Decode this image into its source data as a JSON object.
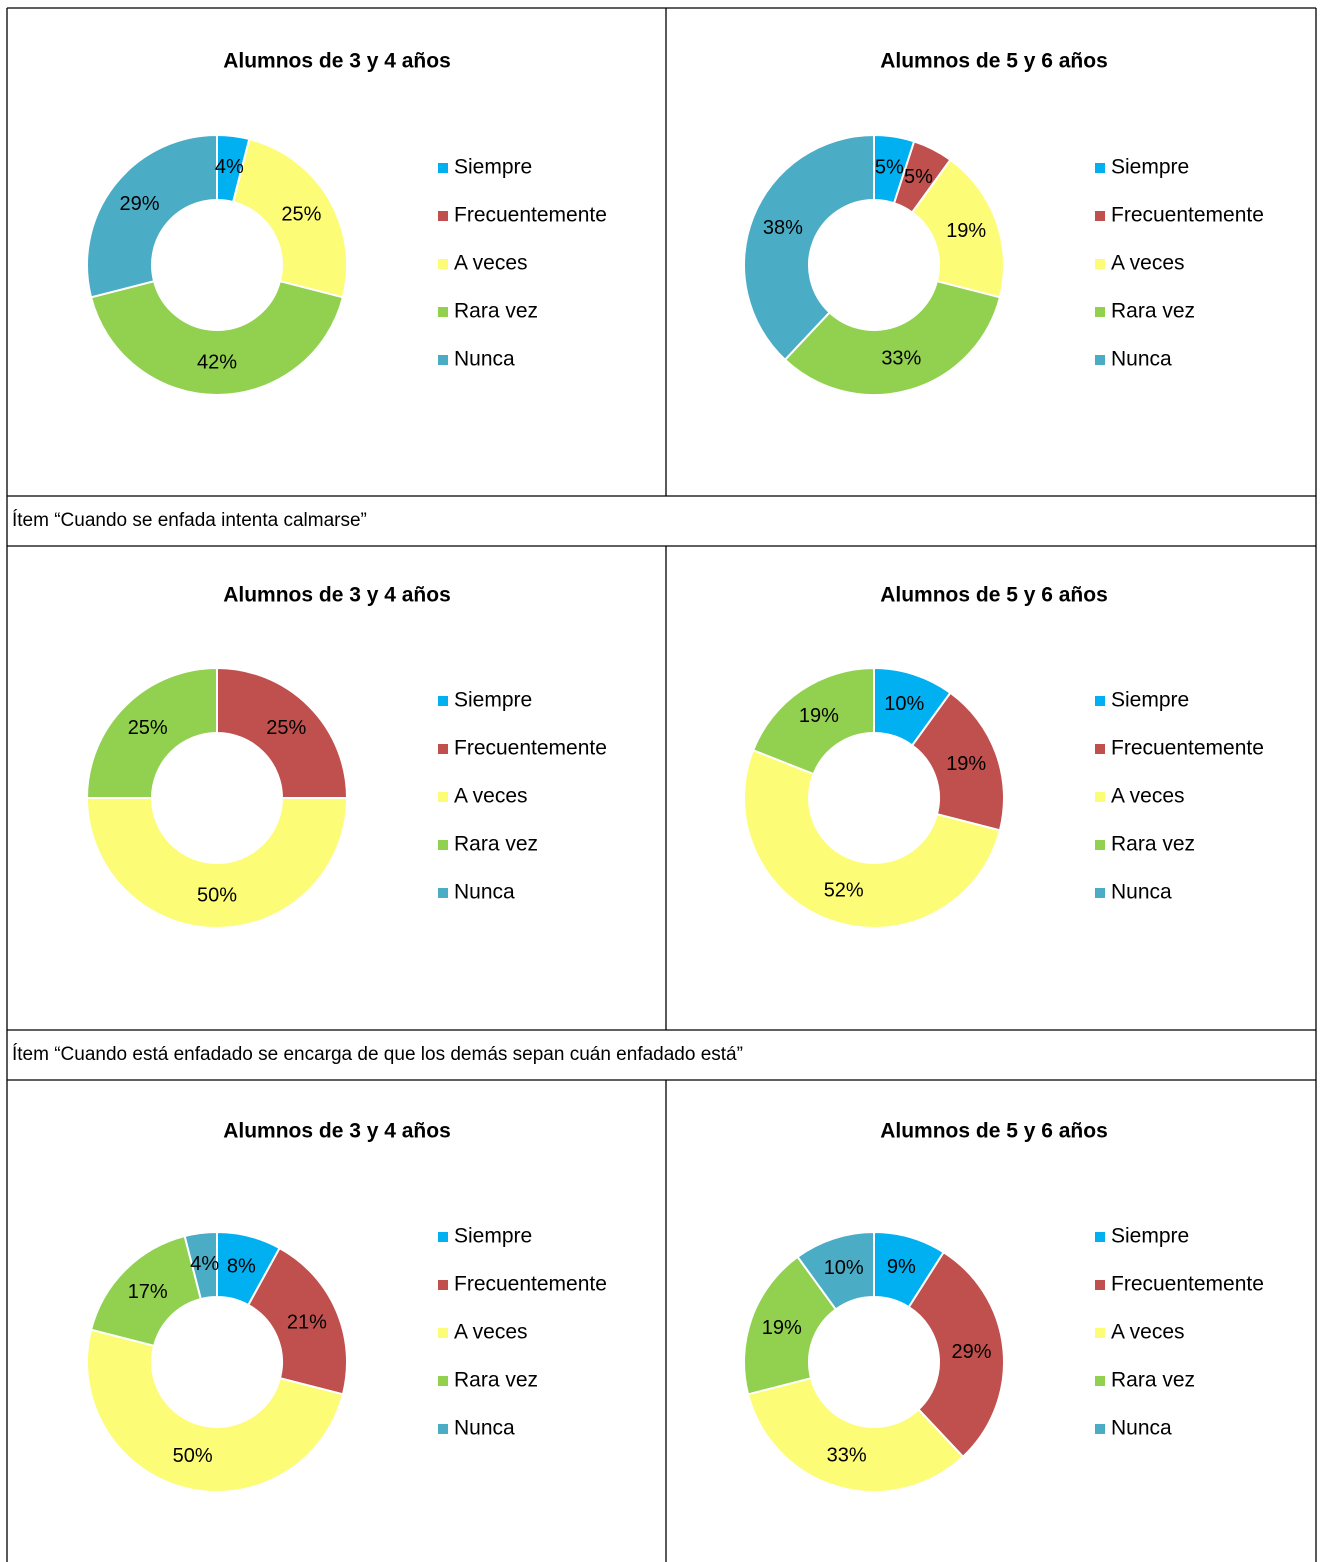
{
  "chart_data": [
    {
      "type": "donut",
      "title": "Alumnos de 3 y 4 años",
      "categories": [
        "Siempre",
        "Frecuentemente",
        "A veces",
        "Rara vez",
        "Nunca"
      ],
      "values": [
        4,
        0,
        25,
        42,
        29
      ],
      "value_labels": [
        "4%",
        null,
        "25%",
        "42%",
        "29%"
      ],
      "colors": [
        "#00b0f0",
        "#c0504d",
        "#fcfc77",
        "#92d050",
        "#4bacc6"
      ]
    },
    {
      "type": "donut",
      "title": "Alumnos de 5 y 6 años",
      "categories": [
        "Siempre",
        "Frecuentemente",
        "A veces",
        "Rara vez",
        "Nunca"
      ],
      "values": [
        5,
        5,
        19,
        33,
        38
      ],
      "value_labels": [
        "5%",
        "5%",
        "19%",
        "33%",
        "38%"
      ],
      "colors": [
        "#00b0f0",
        "#c0504d",
        "#fcfc77",
        "#92d050",
        "#4bacc6"
      ]
    },
    {
      "type": "donut",
      "title": "Alumnos de 3 y 4 años",
      "categories": [
        "Siempre",
        "Frecuentemente",
        "A veces",
        "Rara vez",
        "Nunca"
      ],
      "values": [
        0,
        25,
        50,
        25,
        0
      ],
      "value_labels": [
        null,
        "25%",
        "50%",
        "25%",
        null
      ],
      "colors": [
        "#00b0f0",
        "#c0504d",
        "#fcfc77",
        "#92d050",
        "#4bacc6"
      ]
    },
    {
      "type": "donut",
      "title": "Alumnos de 5 y 6 años",
      "categories": [
        "Siempre",
        "Frecuentemente",
        "A veces",
        "Rara vez",
        "Nunca"
      ],
      "values": [
        10,
        19,
        52,
        19,
        0
      ],
      "value_labels": [
        "10%",
        "19%",
        "52%",
        "19%",
        null
      ],
      "colors": [
        "#00b0f0",
        "#c0504d",
        "#fcfc77",
        "#92d050",
        "#4bacc6"
      ]
    },
    {
      "type": "donut",
      "title": "Alumnos de 3 y 4 años",
      "categories": [
        "Siempre",
        "Frecuentemente",
        "A veces",
        "Rara vez",
        "Nunca"
      ],
      "values": [
        8,
        21,
        50,
        17,
        4
      ],
      "value_labels": [
        "8%",
        "21%",
        "50%",
        "17%",
        "4%"
      ],
      "colors": [
        "#00b0f0",
        "#c0504d",
        "#fcfc77",
        "#92d050",
        "#4bacc6"
      ]
    },
    {
      "type": "donut",
      "title": "Alumnos de 5 y 6 años",
      "categories": [
        "Siempre",
        "Frecuentemente",
        "A veces",
        "Rara vez",
        "Nunca"
      ],
      "values": [
        9,
        29,
        33,
        19,
        10
      ],
      "value_labels": [
        "9%",
        "29%",
        "33%",
        "19%",
        "10%"
      ],
      "colors": [
        "#00b0f0",
        "#c0504d",
        "#fcfc77",
        "#92d050",
        "#4bacc6"
      ]
    }
  ],
  "captions": [
    "Ítem “Cuando se enfada intenta calmarse”",
    "Ítem “Cuando está enfadado se encarga de que los demás sepan cuán enfadado está”"
  ]
}
